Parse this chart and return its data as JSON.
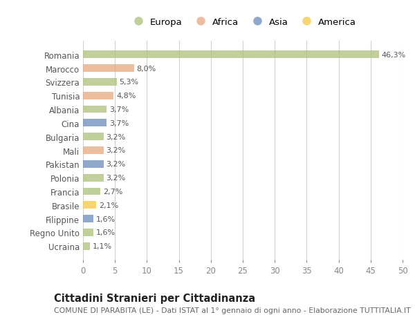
{
  "countries": [
    "Romania",
    "Marocco",
    "Svizzera",
    "Tunisia",
    "Albania",
    "Cina",
    "Bulgaria",
    "Mali",
    "Pakistan",
    "Polonia",
    "Francia",
    "Brasile",
    "Filippine",
    "Regno Unito",
    "Ucraina"
  ],
  "values": [
    46.3,
    8.0,
    5.3,
    4.8,
    3.7,
    3.7,
    3.2,
    3.2,
    3.2,
    3.2,
    2.7,
    2.1,
    1.6,
    1.6,
    1.1
  ],
  "labels": [
    "46,3%",
    "8,0%",
    "5,3%",
    "4,8%",
    "3,7%",
    "3,7%",
    "3,2%",
    "3,2%",
    "3,2%",
    "3,2%",
    "2,7%",
    "2,1%",
    "1,6%",
    "1,6%",
    "1,1%"
  ],
  "colors": [
    "#adc178",
    "#e8a87c",
    "#adc178",
    "#e8a87c",
    "#adc178",
    "#6b8cba",
    "#adc178",
    "#e8a87c",
    "#6b8cba",
    "#adc178",
    "#adc178",
    "#f5c842",
    "#6b8cba",
    "#adc178",
    "#adc178"
  ],
  "legend_names": [
    "Europa",
    "Africa",
    "Asia",
    "America"
  ],
  "legend_colors": [
    "#adc178",
    "#e8a87c",
    "#6b8cba",
    "#f5c842"
  ],
  "xlim": [
    0,
    50
  ],
  "xticks": [
    0,
    5,
    10,
    15,
    20,
    25,
    30,
    35,
    40,
    45,
    50
  ],
  "title": "Cittadini Stranieri per Cittadinanza",
  "subtitle": "COMUNE DI PARABITA (LE) - Dati ISTAT al 1° gennaio di ogni anno - Elaborazione TUTTITALIA.IT",
  "bg_color": "#ffffff",
  "grid_color": "#d0d0d0",
  "bar_alpha": 0.75,
  "label_color": "#555555",
  "tick_color": "#888888",
  "title_fontsize": 10.5,
  "subtitle_fontsize": 7.8,
  "bar_label_fontsize": 8.0,
  "ytick_fontsize": 8.5,
  "xtick_fontsize": 8.5,
  "legend_fontsize": 9.5
}
